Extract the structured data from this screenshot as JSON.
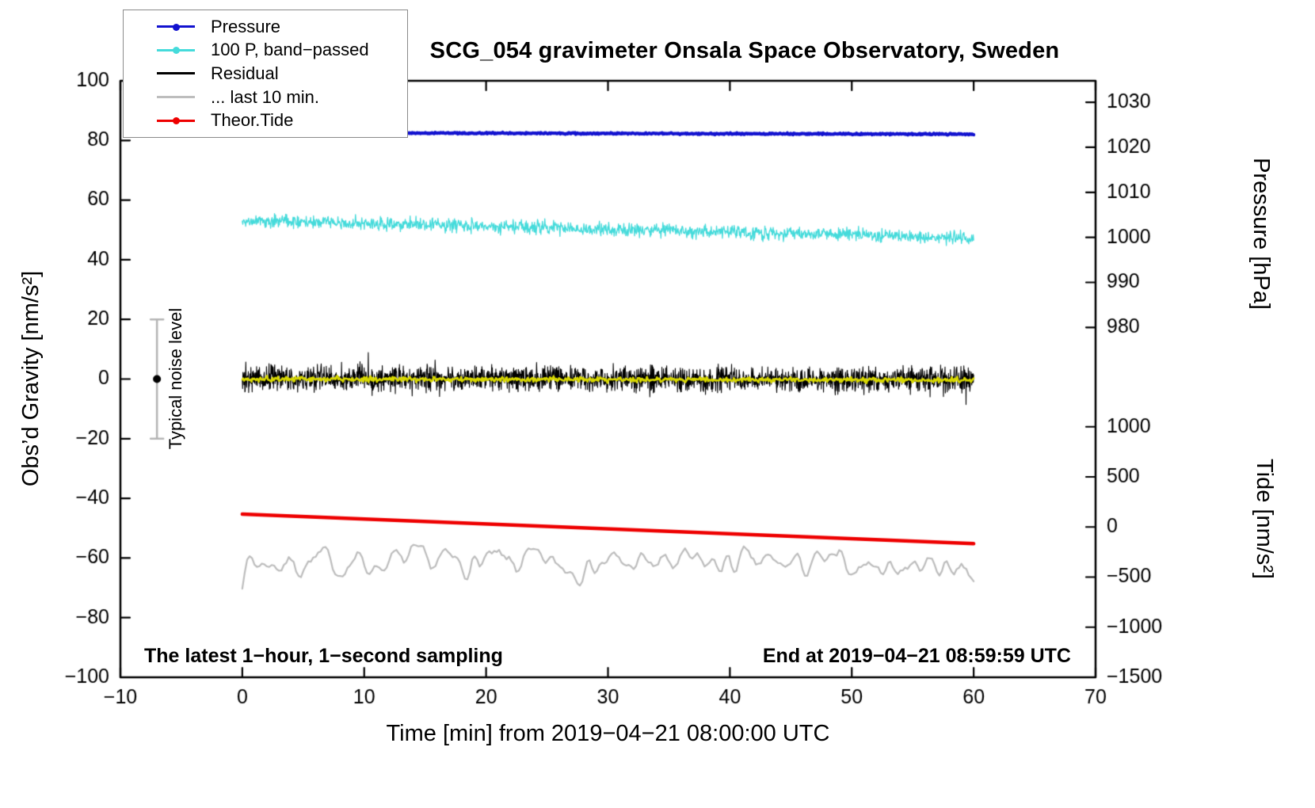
{
  "chart_data": {
    "type": "line",
    "title": "SCG_054 gravimeter Onsala Space Observatory, Sweden",
    "xlabel": "Time [min] from 2019−04−21 08:00:00 UTC",
    "ylabel": "Obs’d Gravity [nm/s²]",
    "ylabel_right_top": "Pressure [hPa]",
    "ylabel_right_bottom": "Tide [nm/s²]",
    "xlim": [
      -10,
      70
    ],
    "ylim": [
      -100,
      100
    ],
    "x_ticks": [
      -10,
      0,
      10,
      20,
      30,
      40,
      50,
      60,
      70
    ],
    "y_ticks": [
      -100,
      -80,
      -60,
      -40,
      -20,
      0,
      20,
      40,
      60,
      80,
      100
    ],
    "grid": false,
    "legend_position": "top-left",
    "right_axis_pressure": {
      "tick_labels": [
        1030,
        1020,
        1010,
        1000,
        990,
        980
      ],
      "positions_in_gravity_units": [
        92.8,
        77.7,
        62.6,
        47.5,
        32.4,
        17.3
      ]
    },
    "right_axis_tide": {
      "tick_labels": [
        1000,
        500,
        0,
        -500,
        -1000,
        -1500
      ],
      "positions_in_gravity_units": [
        -16,
        -32.8,
        -49.6,
        -66.4,
        -83.2,
        -100
      ]
    },
    "legend": {
      "entries": [
        {
          "label": "Pressure",
          "color": "#1212cf",
          "marker": "dot-line"
        },
        {
          "label": "100 P, band−passed",
          "color": "#45dbdb",
          "marker": "dot-line"
        },
        {
          "label": "Residual",
          "color": "#000000",
          "marker": "line"
        },
        {
          "label": "... last 10 min.",
          "color": "#bdbdbd",
          "marker": "line"
        },
        {
          "label": "Theor.Tide",
          "color": "#ee0000",
          "marker": "dot-line"
        }
      ]
    },
    "series": [
      {
        "name": "... last 10 min.",
        "color": "#bdbdbd",
        "width": 2.2,
        "kind": "smooth",
        "x_start": 0,
        "x_end": 60,
        "y_start": -61.5,
        "y_end": -62.5,
        "noise": 9,
        "points": 300
      },
      {
        "name": "Theor.Tide",
        "color": "#ee0000",
        "width": 4.5,
        "kind": "line",
        "x_start": 0,
        "x_end": 60,
        "y_start": -45.3,
        "y_end": -55.2,
        "noise": 0,
        "points": 2
      },
      {
        "name": "100 P, band−passed",
        "color": "#45dbdb",
        "width": 1.3,
        "kind": "noisy",
        "x_start": 0,
        "x_end": 60,
        "y_start": 53.2,
        "y_end": 47.3,
        "noise": 1.1,
        "points": 1500
      },
      {
        "name": "Pressure",
        "color": "#1212cf",
        "width": 4.2,
        "kind": "noisy",
        "x_start": 0,
        "x_end": 60,
        "y_start": 82.6,
        "y_end": 82.1,
        "noise": 0.12,
        "points": 900
      },
      {
        "name": "Residual",
        "color": "#000000",
        "width": 1.1,
        "kind": "noisy",
        "spiky": true,
        "x_start": 0,
        "x_end": 60,
        "y_start": 0.2,
        "y_end": -0.2,
        "noise": 2.1,
        "points": 2300
      },
      {
        "name": "Residual (smoothed)",
        "color": "#d8d800",
        "width": 2.6,
        "kind": "noisy",
        "x_start": 0,
        "x_end": 60,
        "y_start": 0,
        "y_end": -0.3,
        "noise": 0.4,
        "points": 800
      }
    ],
    "noise_marker": {
      "x": -7,
      "center": 0,
      "half_range": 20,
      "label": "Typical noise level",
      "bar_color": "#b5b5b5",
      "dot_color": "#000000"
    },
    "annotations": {
      "bottom_left": "The latest 1−hour, 1−second sampling",
      "bottom_right": "End at 2019−04−21 08:59:59 UTC"
    }
  }
}
